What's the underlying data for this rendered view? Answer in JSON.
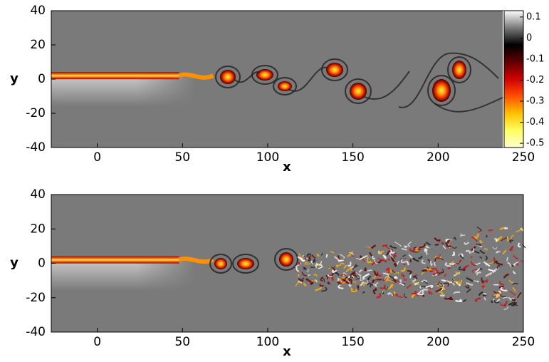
{
  "chart_data": [
    {
      "type": "contour",
      "xlabel": "x",
      "ylabel": "y",
      "xlim": [
        -27,
        250
      ],
      "ylim": [
        -40,
        40
      ],
      "xticks": [
        0,
        50,
        100,
        150,
        200,
        250
      ],
      "yticks": [
        -40,
        -20,
        0,
        20,
        40
      ],
      "colorbar": {
        "lim": [
          -0.52,
          0.13
        ],
        "ticks": [
          -0.5,
          -0.4,
          -0.3,
          -0.2,
          -0.1,
          0,
          0.1
        ],
        "colors": [
          "#ffffd0",
          "#ffff60",
          "#ffc000",
          "#ff5000",
          "#d00000",
          "#600000",
          "#000000",
          "#7a7a7a",
          "#ffffff"
        ]
      }
    },
    {
      "type": "contour",
      "xlabel": "x",
      "ylabel": "y",
      "xlim": [
        -27,
        250
      ],
      "ylim": [
        -40,
        40
      ],
      "xticks": [
        0,
        50,
        100,
        150,
        200,
        250
      ],
      "yticks": [
        -40,
        -20,
        0,
        20,
        40
      ]
    }
  ]
}
